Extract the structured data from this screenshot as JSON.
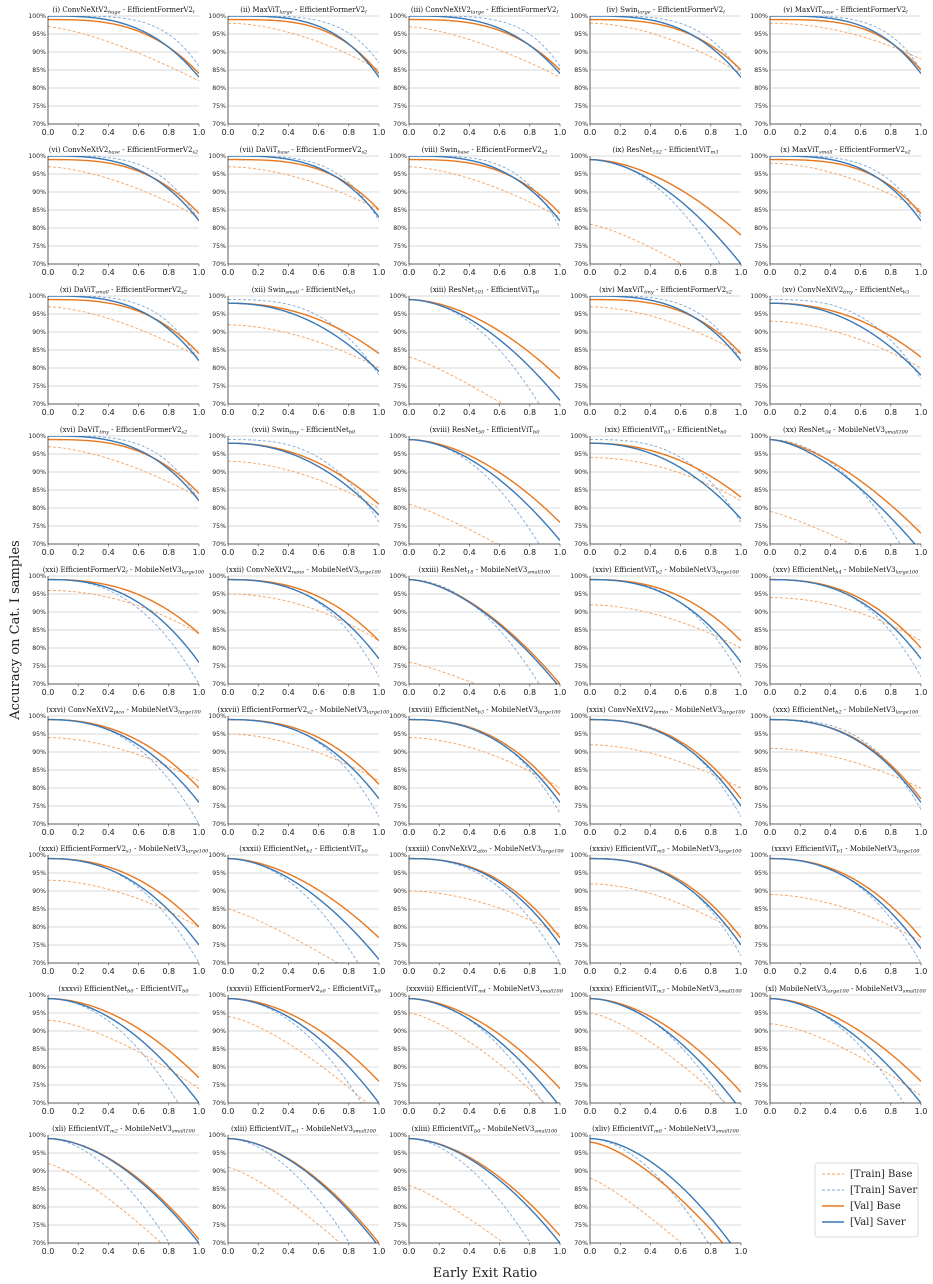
{
  "figure": {
    "xlabel": "Early Exit Ratio",
    "ylabel": "Accuracy on Cat. I samples"
  },
  "legend": {
    "position": "bottom-right",
    "entries": [
      {
        "label": "[Train] Base",
        "color": "#f28e2b",
        "style": "dashed"
      },
      {
        "label": "[Train] Saver",
        "color": "#6a9fd4",
        "style": "dashed"
      },
      {
        "label": "[Val] Base",
        "color": "#e8771e",
        "style": "solid"
      },
      {
        "label": "[Val] Saver",
        "color": "#3a78b6",
        "style": "solid"
      }
    ]
  },
  "chart_data": {
    "type": "line",
    "xlim": [
      0.0,
      1.0
    ],
    "ylim": [
      70,
      100
    ],
    "grid": "horizontal",
    "x_ticks": [
      "0.0",
      "0.2",
      "0.4",
      "0.6",
      "0.8",
      "1.0"
    ],
    "y_ticks": [
      "70%",
      "75%",
      "80%",
      "85%",
      "90%",
      "95%",
      "100%"
    ],
    "series_names": [
      "[Train] Base",
      "[Train] Saver",
      "[Val] Base",
      "[Val] Saver"
    ],
    "panels": [
      {
        "title": [
          "(i) ConvNeXtV2",
          "huge",
          " - EfficientFormerV2",
          "l",
          ""
        ],
        "start": [
          97,
          100,
          99,
          100
        ],
        "end": [
          82,
          86,
          84,
          83
        ],
        "k": [
          1.4,
          4.5,
          3.0,
          3.0
        ]
      },
      {
        "title": [
          "(ii) MaxViT",
          "large",
          " - EfficientFormerV2",
          "l",
          ""
        ],
        "start": [
          98,
          100,
          99,
          100
        ],
        "end": [
          85,
          87,
          84,
          83
        ],
        "k": [
          1.8,
          4.5,
          3.5,
          3.5
        ]
      },
      {
        "title": [
          "(iii) ConvNeXtV2",
          "large",
          " - EfficientFormerV2",
          "l",
          ""
        ],
        "start": [
          97,
          100,
          99,
          100
        ],
        "end": [
          83,
          86,
          85,
          84
        ],
        "k": [
          1.5,
          4.5,
          3.0,
          3.0
        ]
      },
      {
        "title": [
          "(iv) Swin",
          "large",
          " - EfficientFormerV2",
          "l",
          ""
        ],
        "start": [
          98,
          100,
          99,
          100
        ],
        "end": [
          84,
          84,
          85,
          83
        ],
        "k": [
          1.8,
          4.0,
          3.0,
          3.0
        ]
      },
      {
        "title": [
          "(v) MaxViT",
          "base",
          " - EfficientFormerV2",
          "l",
          ""
        ],
        "start": [
          98,
          100,
          99,
          100
        ],
        "end": [
          88,
          85,
          85,
          84
        ],
        "k": [
          2.0,
          4.5,
          3.5,
          3.5
        ]
      },
      {
        "title": [
          "(vi) ConvNeXtV2",
          "base",
          " - EfficientFormerV2",
          "s2",
          ""
        ],
        "start": [
          97,
          100,
          99,
          100
        ],
        "end": [
          83,
          82,
          84,
          82
        ],
        "k": [
          1.6,
          4.0,
          3.0,
          3.0
        ]
      },
      {
        "title": [
          "(vii) DaViT",
          "base",
          " - EfficientFormerV2",
          "s2",
          ""
        ],
        "start": [
          97,
          100,
          99,
          100
        ],
        "end": [
          85,
          82,
          85,
          83
        ],
        "k": [
          1.8,
          4.0,
          3.2,
          3.2
        ]
      },
      {
        "title": [
          "(viii) Swin",
          "base",
          " - EfficientFormerV2",
          "s2",
          ""
        ],
        "start": [
          97,
          100,
          99,
          100
        ],
        "end": [
          83,
          80,
          84,
          82
        ],
        "k": [
          1.6,
          4.0,
          3.0,
          3.0
        ]
      },
      {
        "title": [
          "(ix) ResNet",
          "152",
          " - EfficientViT",
          "m3",
          ""
        ],
        "start": [
          81,
          99,
          99,
          99
        ],
        "end": [
          60,
          60,
          78,
          70
        ],
        "k": [
          1.3,
          2.0,
          1.8,
          1.8
        ]
      },
      {
        "title": [
          "(x) MaxViT",
          "small",
          " - EfficientFormerV2",
          "s2",
          ""
        ],
        "start": [
          98,
          100,
          99,
          100
        ],
        "end": [
          85,
          83,
          84,
          82
        ],
        "k": [
          1.8,
          4.0,
          3.2,
          3.2
        ]
      },
      {
        "title": [
          "(xi) DaViT",
          "small",
          " - EfficientFormerV2",
          "s2",
          ""
        ],
        "start": [
          97,
          100,
          99,
          100
        ],
        "end": [
          83,
          82,
          84,
          82
        ],
        "k": [
          1.6,
          4.0,
          3.0,
          3.0
        ]
      },
      {
        "title": [
          "(xii) Swin",
          "small",
          " - EfficientNet",
          "b3",
          ""
        ],
        "start": [
          92,
          99,
          98,
          98
        ],
        "end": [
          80,
          78,
          84,
          79
        ],
        "k": [
          1.8,
          3.0,
          2.2,
          2.2
        ]
      },
      {
        "title": [
          "(xiii) ResNet",
          "101",
          " - EfficientViT",
          "b0",
          ""
        ],
        "start": [
          83,
          99,
          99,
          99
        ],
        "end": [
          60,
          60,
          77,
          71
        ],
        "k": [
          1.2,
          2.0,
          1.8,
          1.8
        ]
      },
      {
        "title": [
          "(xiv) MaxViT",
          "tiny",
          " - EfficientFormerV2",
          "s2",
          ""
        ],
        "start": [
          97,
          100,
          99,
          100
        ],
        "end": [
          84,
          82,
          84,
          82
        ],
        "k": [
          1.8,
          4.0,
          3.0,
          3.0
        ]
      },
      {
        "title": [
          "(xv) ConvNeXtV2",
          "tiny",
          " - EfficientNet",
          "b3",
          ""
        ],
        "start": [
          93,
          99,
          98,
          98
        ],
        "end": [
          80,
          77,
          83,
          78
        ],
        "k": [
          1.8,
          3.0,
          2.2,
          2.2
        ]
      },
      {
        "title": [
          "(xvi) DaViT",
          "tiny",
          " - EfficientFormerV2",
          "s2",
          ""
        ],
        "start": [
          97,
          100,
          99,
          100
        ],
        "end": [
          83,
          82,
          84,
          82
        ],
        "k": [
          1.6,
          4.0,
          3.0,
          3.0
        ]
      },
      {
        "title": [
          "(xvii) Swin",
          "tiny",
          " - EfficientNet",
          "b0",
          ""
        ],
        "start": [
          93,
          99,
          98,
          98
        ],
        "end": [
          80,
          76,
          81,
          78
        ],
        "k": [
          1.8,
          3.0,
          2.2,
          2.2
        ]
      },
      {
        "title": [
          "(xviii) ResNet",
          "50",
          " - EfficientViT",
          "b0",
          ""
        ],
        "start": [
          81,
          99,
          99,
          99
        ],
        "end": [
          60,
          60,
          76,
          71
        ],
        "k": [
          1.2,
          2.0,
          1.8,
          1.8
        ]
      },
      {
        "title": [
          "(xix) EfficientViT",
          "b3",
          " - EfficientNet",
          "b0",
          ""
        ],
        "start": [
          94,
          99,
          98,
          98
        ],
        "end": [
          82,
          76,
          83,
          77
        ],
        "k": [
          2.0,
          3.0,
          2.2,
          2.2
        ]
      },
      {
        "title": [
          "(xx) ResNet",
          "34",
          " - MobileNetV3",
          "small100",
          ""
        ],
        "start": [
          79,
          99,
          99,
          99
        ],
        "end": [
          60,
          60,
          73,
          68
        ],
        "k": [
          1.2,
          2.0,
          1.6,
          1.6
        ]
      },
      {
        "title": [
          "(xxi) EfficientFormerV2",
          "l",
          " - MobileNetV3",
          "large100",
          ""
        ],
        "start": [
          96,
          99,
          99,
          99
        ],
        "end": [
          84,
          70,
          84,
          76
        ],
        "k": [
          2.0,
          2.5,
          2.5,
          2.5
        ]
      },
      {
        "title": [
          "(xxii) ConvNeXtV2",
          "nano",
          " - MobileNetV3",
          "large100",
          ""
        ],
        "start": [
          95,
          99,
          99,
          99
        ],
        "end": [
          82,
          72,
          82,
          77
        ],
        "k": [
          2.0,
          2.8,
          2.5,
          2.5
        ]
      },
      {
        "title": [
          "(xxiii) ResNet",
          "18",
          " - MobileNetV3",
          "small100",
          ""
        ],
        "start": [
          76,
          99,
          99,
          99
        ],
        "end": [
          60,
          60,
          70,
          69
        ],
        "k": [
          1.2,
          2.0,
          1.7,
          1.7
        ]
      },
      {
        "title": [
          "(xxiv) EfficientViT",
          "b2",
          " - MobileNetV3",
          "large100",
          ""
        ],
        "start": [
          92,
          99,
          99,
          99
        ],
        "end": [
          80,
          72,
          82,
          76
        ],
        "k": [
          1.8,
          2.8,
          2.5,
          2.5
        ]
      },
      {
        "title": [
          "(xxv) EfficientNet",
          "b4",
          " - MobileNetV3",
          "large100",
          ""
        ],
        "start": [
          94,
          99,
          99,
          99
        ],
        "end": [
          82,
          72,
          80,
          77
        ],
        "k": [
          2.0,
          2.8,
          2.5,
          2.5
        ]
      },
      {
        "title": [
          "(xxvi) ConvNeXtV2",
          "pico",
          " - MobileNetV3",
          "large100",
          ""
        ],
        "start": [
          94,
          99,
          99,
          99
        ],
        "end": [
          82,
          70,
          80,
          76
        ],
        "k": [
          1.8,
          2.5,
          2.3,
          2.3
        ]
      },
      {
        "title": [
          "(xxvii) EfficientFormerV2",
          "s2",
          " - MobileNetV3",
          "large100",
          ""
        ],
        "start": [
          95,
          99,
          99,
          99
        ],
        "end": [
          82,
          72,
          81,
          77
        ],
        "k": [
          1.8,
          2.8,
          2.5,
          2.5
        ]
      },
      {
        "title": [
          "(xxviii) EfficientNet",
          "b3",
          " - MobileNetV3",
          "large100",
          ""
        ],
        "start": [
          94,
          99,
          99,
          99
        ],
        "end": [
          80,
          73,
          78,
          76
        ],
        "k": [
          1.8,
          2.8,
          2.5,
          2.5
        ]
      },
      {
        "title": [
          "(xxix) ConvNeXtV2",
          "femto",
          " - MobileNetV3",
          "large100",
          ""
        ],
        "start": [
          92,
          99,
          99,
          99
        ],
        "end": [
          80,
          72,
          77,
          75
        ],
        "k": [
          1.8,
          2.8,
          2.5,
          2.5
        ]
      },
      {
        "title": [
          "(xxx) EfficientNet",
          "b2",
          " - MobileNetV3",
          "large100",
          ""
        ],
        "start": [
          91,
          99,
          99,
          99
        ],
        "end": [
          80,
          74,
          77,
          76
        ],
        "k": [
          1.8,
          3.0,
          2.5,
          2.5
        ]
      },
      {
        "title": [
          "(xxxi) EfficientFormerV2",
          "s1",
          " - MobileNetV3",
          "large100",
          ""
        ],
        "start": [
          93,
          99,
          99,
          99
        ],
        "end": [
          80,
          70,
          80,
          75
        ],
        "k": [
          1.8,
          2.5,
          2.3,
          2.3
        ]
      },
      {
        "title": [
          "(xxxii) EfficientNet",
          "b1",
          " - EfficientViT",
          "b0",
          ""
        ],
        "start": [
          85,
          99,
          99,
          99
        ],
        "end": [
          63,
          60,
          77,
          71
        ],
        "k": [
          1.2,
          2.0,
          1.8,
          1.8
        ]
      },
      {
        "title": [
          "(xxxiii) ConvNeXtV2",
          "atto",
          " - MobileNetV3",
          "large100",
          ""
        ],
        "start": [
          90,
          99,
          99,
          99
        ],
        "end": [
          78,
          70,
          77,
          75
        ],
        "k": [
          1.8,
          2.5,
          2.5,
          2.5
        ]
      },
      {
        "title": [
          "(xxxiv) EfficientViT",
          "m5",
          " - MobileNetV3",
          "large100",
          ""
        ],
        "start": [
          92,
          99,
          99,
          99
        ],
        "end": [
          78,
          72,
          77,
          75
        ],
        "k": [
          1.8,
          2.8,
          2.5,
          2.5
        ]
      },
      {
        "title": [
          "(xxxv) EfficientViT",
          "b1",
          " - MobileNetV3",
          "large100",
          ""
        ],
        "start": [
          89,
          99,
          99,
          99
        ],
        "end": [
          76,
          70,
          77,
          74
        ],
        "k": [
          1.8,
          2.5,
          2.3,
          2.3
        ]
      },
      {
        "title": [
          "(xxxvi) EfficientNet",
          "b0",
          " - EfficientViT",
          "b0",
          ""
        ],
        "start": [
          93,
          99,
          99,
          99
        ],
        "end": [
          74,
          60,
          77,
          70
        ],
        "k": [
          1.5,
          2.0,
          1.9,
          1.9
        ]
      },
      {
        "title": [
          "(xxxvii) EfficientFormerV2",
          "s0",
          " - EfficientViT",
          "b0",
          ""
        ],
        "start": [
          94,
          99,
          99,
          99
        ],
        "end": [
          67,
          62,
          76,
          70
        ],
        "k": [
          1.4,
          2.0,
          1.9,
          1.9
        ]
      },
      {
        "title": [
          "(xxxviii) EfficientViT",
          "m4",
          " - MobileNetV3",
          "small100",
          ""
        ],
        "start": [
          95,
          99,
          99,
          99
        ],
        "end": [
          66,
          62,
          74,
          69
        ],
        "k": [
          1.4,
          2.0,
          1.8,
          1.8
        ]
      },
      {
        "title": [
          "(xxxix) EfficientViT",
          "m3",
          " - MobileNetV3",
          "small100",
          ""
        ],
        "start": [
          95,
          99,
          99,
          99
        ],
        "end": [
          66,
          62,
          73,
          68
        ],
        "k": [
          1.4,
          2.0,
          1.8,
          1.8
        ]
      },
      {
        "title": [
          "(xl) MobileNetV3",
          "large100",
          " - MobileNetV3",
          "small100",
          ""
        ],
        "start": [
          92,
          99,
          99,
          99
        ],
        "end": [
          72,
          62,
          76,
          70
        ],
        "k": [
          1.5,
          2.0,
          1.8,
          1.8
        ]
      },
      {
        "title": [
          "(xli) EfficientViT",
          "m2",
          " - MobileNetV3",
          "small100",
          ""
        ],
        "start": [
          92,
          99,
          99,
          99
        ],
        "end": [
          60,
          56,
          71,
          70
        ],
        "k": [
          1.3,
          1.8,
          1.8,
          1.8
        ]
      },
      {
        "title": [
          "(xlii) EfficientViT",
          "m1",
          " - MobileNetV3",
          "small100",
          ""
        ],
        "start": [
          91,
          99,
          99,
          99
        ],
        "end": [
          60,
          56,
          70,
          69
        ],
        "k": [
          1.3,
          1.8,
          1.8,
          1.8
        ]
      },
      {
        "title": [
          "(xliii) EfficientViT",
          "b0",
          " - MobileNetV3",
          "small100",
          ""
        ],
        "start": [
          86,
          99,
          99,
          99
        ],
        "end": [
          58,
          56,
          72,
          70
        ],
        "k": [
          1.2,
          1.8,
          1.8,
          1.8
        ]
      },
      {
        "title": [
          "(xliv) EfficientViT",
          "m0",
          " - MobileNetV3",
          "small100",
          ""
        ],
        "start": [
          88,
          99,
          98,
          99
        ],
        "end": [
          55,
          54,
          64,
          66
        ],
        "k": [
          1.2,
          1.8,
          1.5,
          1.8
        ]
      }
    ]
  }
}
